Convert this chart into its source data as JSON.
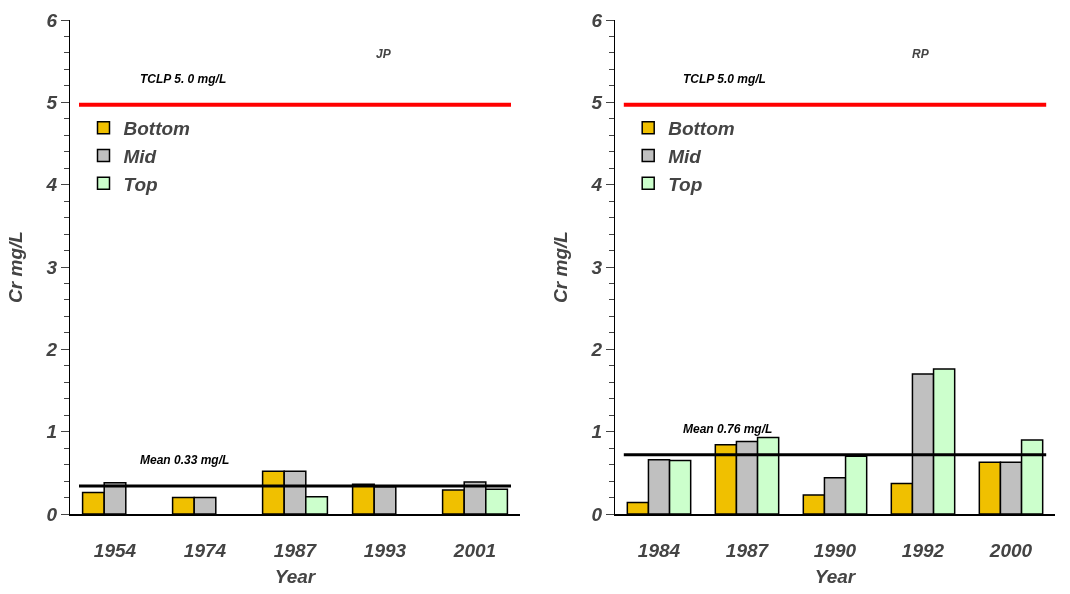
{
  "chart_data": [
    {
      "type": "bar",
      "title": "JP",
      "xlabel": "Year",
      "ylabel": "Cr mg/L",
      "categories": [
        "1954",
        "1974",
        "1987",
        "1993",
        "2001"
      ],
      "series": [
        {
          "name": "Bottom",
          "color": "#f0c000",
          "values": [
            0.26,
            0.2,
            0.52,
            0.36,
            0.29
          ]
        },
        {
          "name": "Mid",
          "color": "#c0c0c0",
          "values": [
            0.38,
            0.2,
            0.52,
            0.33,
            0.39
          ]
        },
        {
          "name": "Top",
          "color": "#ccffcc",
          "values": [
            null,
            null,
            0.21,
            null,
            0.3
          ]
        }
      ],
      "ylim": [
        0,
        6
      ],
      "yticks": [
        0,
        1,
        2,
        3,
        4,
        5,
        6
      ],
      "grid": false,
      "legend": "top left",
      "ref_lines": [
        {
          "axis": "y",
          "value": 4.97,
          "label": "TCLP 5. 0 mg/L",
          "color": "#ff0000"
        },
        {
          "axis": "y",
          "value": 0.34,
          "label": "Mean 0.33 mg/L",
          "color": "#000000"
        }
      ]
    },
    {
      "type": "bar",
      "title": "RP",
      "xlabel": "Year",
      "ylabel": "Cr mg/L",
      "categories": [
        "1984",
        "1987",
        "1990",
        "1992",
        "2000"
      ],
      "series": [
        {
          "name": "Bottom",
          "color": "#f0c000",
          "values": [
            0.14,
            0.84,
            0.23,
            0.37,
            0.63
          ]
        },
        {
          "name": "Mid",
          "color": "#c0c0c0",
          "values": [
            0.66,
            0.88,
            0.44,
            1.7,
            0.63
          ]
        },
        {
          "name": "Top",
          "color": "#ccffcc",
          "values": [
            0.65,
            0.93,
            0.7,
            1.76,
            0.9
          ]
        }
      ],
      "ylim": [
        0,
        6
      ],
      "yticks": [
        0,
        1,
        2,
        3,
        4,
        5,
        6
      ],
      "grid": false,
      "legend": "top left",
      "ref_lines": [
        {
          "axis": "y",
          "value": 4.97,
          "label": "TCLP 5.0 mg/L",
          "color": "#ff0000"
        },
        {
          "axis": "y",
          "value": 0.72,
          "label": "Mean 0.76 mg/L",
          "color": "#000000"
        }
      ]
    }
  ]
}
